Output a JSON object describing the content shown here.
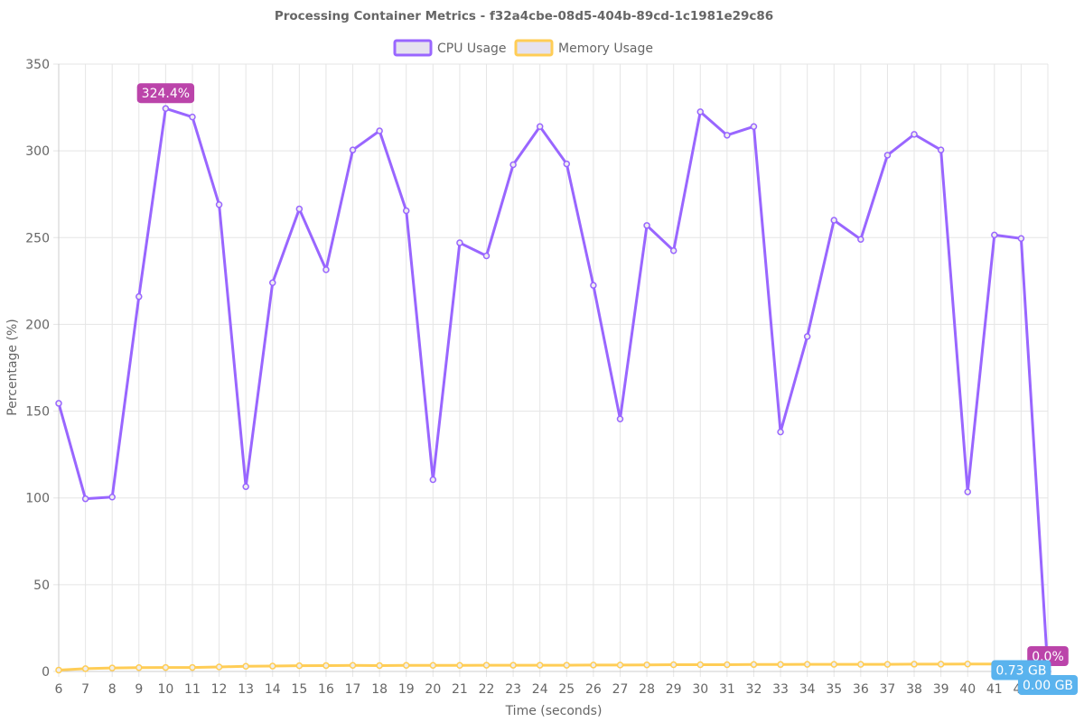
{
  "chart_data": {
    "type": "line",
    "title": "Processing Container Metrics - f32a4cbe-08d5-404b-89cd-1c1981e29c86",
    "xlabel": "Time (seconds)",
    "ylabel": "Percentage (%)",
    "x": [
      6,
      7,
      8,
      9,
      10,
      11,
      12,
      13,
      14,
      15,
      16,
      17,
      18,
      19,
      20,
      21,
      22,
      23,
      24,
      25,
      26,
      27,
      28,
      29,
      30,
      31,
      32,
      33,
      34,
      35,
      36,
      37,
      38,
      39,
      40,
      41,
      42,
      43
    ],
    "ylim": [
      0,
      350
    ],
    "yticks": [
      0,
      50,
      100,
      150,
      200,
      250,
      300,
      350
    ],
    "grid": true,
    "legend_position": "top-center",
    "series": [
      {
        "name": "CPU Usage",
        "color": "#9966ff",
        "values": [
          154.5,
          99.5,
          100.5,
          216,
          324.4,
          319.5,
          269,
          106.5,
          224,
          266.5,
          231.5,
          300.5,
          311.5,
          265.5,
          110.5,
          247,
          239.5,
          292,
          314,
          292.5,
          222.5,
          145.5,
          257,
          242.5,
          322.5,
          309,
          314,
          138,
          193,
          260,
          249,
          297.5,
          309.5,
          300.5,
          103.5,
          251.5,
          249.5,
          0.0
        ]
      },
      {
        "name": "Memory Usage",
        "color": "#ffcd56",
        "values": [
          0.8,
          1.6,
          2.0,
          2.2,
          2.3,
          2.3,
          2.6,
          3.0,
          3.1,
          3.3,
          3.4,
          3.5,
          3.4,
          3.5,
          3.5,
          3.5,
          3.6,
          3.6,
          3.6,
          3.6,
          3.7,
          3.7,
          3.8,
          3.9,
          3.9,
          3.9,
          4.0,
          4.0,
          4.1,
          4.1,
          4.1,
          4.1,
          4.2,
          4.2,
          4.3,
          4.3,
          4.4,
          0.0
        ]
      }
    ],
    "annotations": [
      {
        "series": "CPU Usage",
        "x": 10,
        "label": "324.4%",
        "color": "#bb44aa"
      },
      {
        "series": "CPU Usage",
        "x": 43,
        "label": "0.0%",
        "color": "#bb44aa"
      },
      {
        "series": "Memory Usage",
        "x": 42,
        "label": "0.73 GB",
        "color": "#5ab3ee"
      },
      {
        "series": "Memory Usage",
        "x": 43,
        "label": "0.00 GB",
        "color": "#5ab3ee"
      }
    ]
  }
}
